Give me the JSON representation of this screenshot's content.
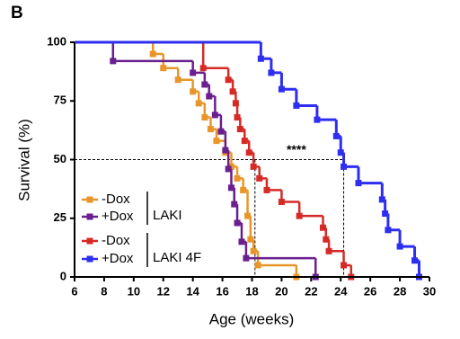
{
  "chart_data": {
    "type": "step",
    "panel_label": "B",
    "x_label": "Age (weeks)",
    "y_label": "Survival (%)",
    "annotation": "****",
    "xlim": [
      6,
      30
    ],
    "xticks": [
      6,
      8,
      10,
      12,
      14,
      16,
      18,
      20,
      22,
      24,
      26,
      28,
      30
    ],
    "ylim": [
      0,
      100
    ],
    "yticks": [
      0,
      25,
      50,
      75,
      100
    ],
    "reference_y": 50,
    "median_x": [
      18.2,
      24.2
    ],
    "legend_groups": [
      {
        "label": "LAKI",
        "series": [
          0,
          1
        ]
      },
      {
        "label": "LAKI 4F",
        "series": [
          2,
          3
        ]
      }
    ],
    "series": [
      {
        "name": "-Dox",
        "color": "#e8962a",
        "x": [
          6,
          11.3,
          12.0,
          13.0,
          14.0,
          14.4,
          14.8,
          15.2,
          15.6,
          16.2,
          16.6,
          17.0,
          17.4,
          17.7,
          17.9,
          18.1,
          18.4,
          21.0
        ],
        "values": [
          100,
          95,
          89,
          84,
          79,
          74,
          68,
          63,
          58,
          53,
          47,
          42,
          37,
          26,
          16,
          11,
          5,
          0
        ]
      },
      {
        "name": "+Dox",
        "color": "#6a1f8f",
        "x": [
          6,
          8.6,
          14.0,
          14.8,
          15.1,
          15.5,
          15.9,
          16.2,
          16.4,
          16.6,
          16.8,
          17.0,
          17.3,
          17.6,
          22.3
        ],
        "values": [
          100,
          92,
          87,
          82,
          77,
          69,
          62,
          54,
          46,
          38,
          31,
          23,
          15,
          8,
          0
        ]
      },
      {
        "name": "-Dox",
        "color": "#d62a27",
        "x": [
          6,
          14.7,
          16.4,
          16.7,
          16.9,
          17.0,
          17.2,
          17.5,
          17.8,
          18.1,
          18.5,
          19.0,
          20.0,
          21.2,
          22.8,
          23.0,
          23.2,
          24.2,
          24.7
        ],
        "values": [
          100,
          89,
          84,
          79,
          74,
          68,
          63,
          58,
          53,
          47,
          42,
          37,
          32,
          26,
          21,
          16,
          11,
          5,
          0
        ]
      },
      {
        "name": "+Dox",
        "color": "#2e2ef0",
        "x": [
          6,
          18.6,
          19.3,
          20.0,
          21.0,
          22.4,
          23.7,
          24.0,
          24.2,
          25.2,
          26.8,
          27.0,
          27.2,
          28.0,
          29.0,
          29.3
        ],
        "values": [
          100,
          93,
          87,
          80,
          73,
          67,
          60,
          53,
          47,
          40,
          33,
          27,
          20,
          13,
          7,
          0
        ]
      }
    ]
  }
}
